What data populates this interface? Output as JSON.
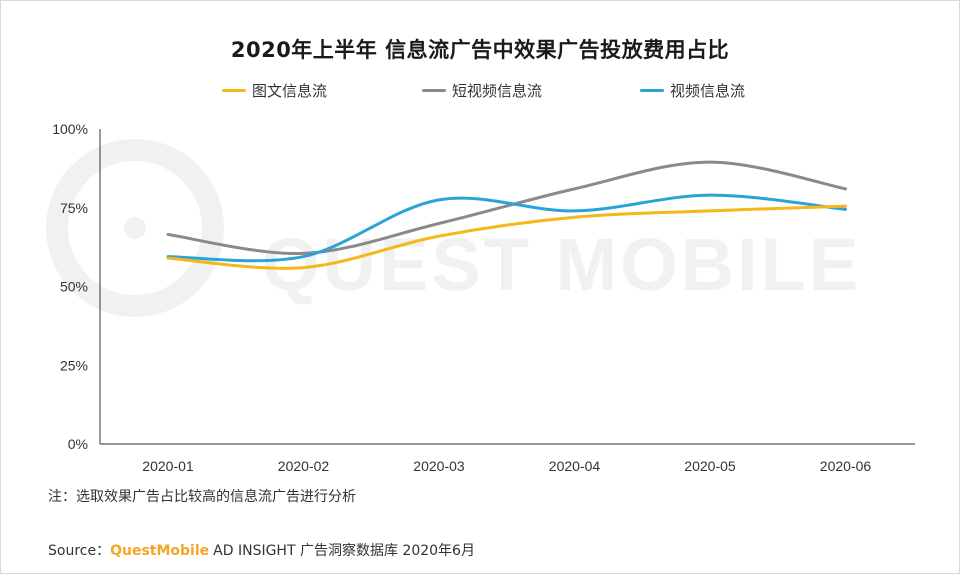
{
  "colors": {
    "图文信息流": "#f5b71a",
    "短视频信息流": "#8a8a8a",
    "视频信息流": "#2aa3d6"
  },
  "chart_data": {
    "type": "line",
    "title": "2020年上半年 信息流广告中效果广告投放费用占比",
    "categories": [
      "2020-01",
      "2020-02",
      "2020-03",
      "2020-04",
      "2020-05",
      "2020-06"
    ],
    "y_ticks": [
      "0%",
      "25%",
      "50%",
      "75%",
      "100%"
    ],
    "ylim": [
      0,
      100
    ],
    "legend_position": "top",
    "grid": false,
    "series": [
      {
        "name": "图文信息流",
        "values": [
          59,
          56,
          66,
          72,
          74,
          75.5
        ]
      },
      {
        "name": "短视频信息流",
        "values": [
          66.5,
          60.5,
          70,
          81,
          89.5,
          81
        ]
      },
      {
        "name": "视频信息流",
        "values": [
          59.5,
          59.5,
          77.5,
          74,
          79,
          74.5
        ]
      }
    ]
  },
  "watermark": {
    "text": "QUEST MOBILE"
  },
  "footer": {
    "note": "注：选取效果广告占比较高的信息流广告进行分析",
    "source_label": "Source：",
    "source_brand": "QuestMobile",
    "source_rest": "AD INSIGHT 广告洞察数据库 2020年6月"
  }
}
